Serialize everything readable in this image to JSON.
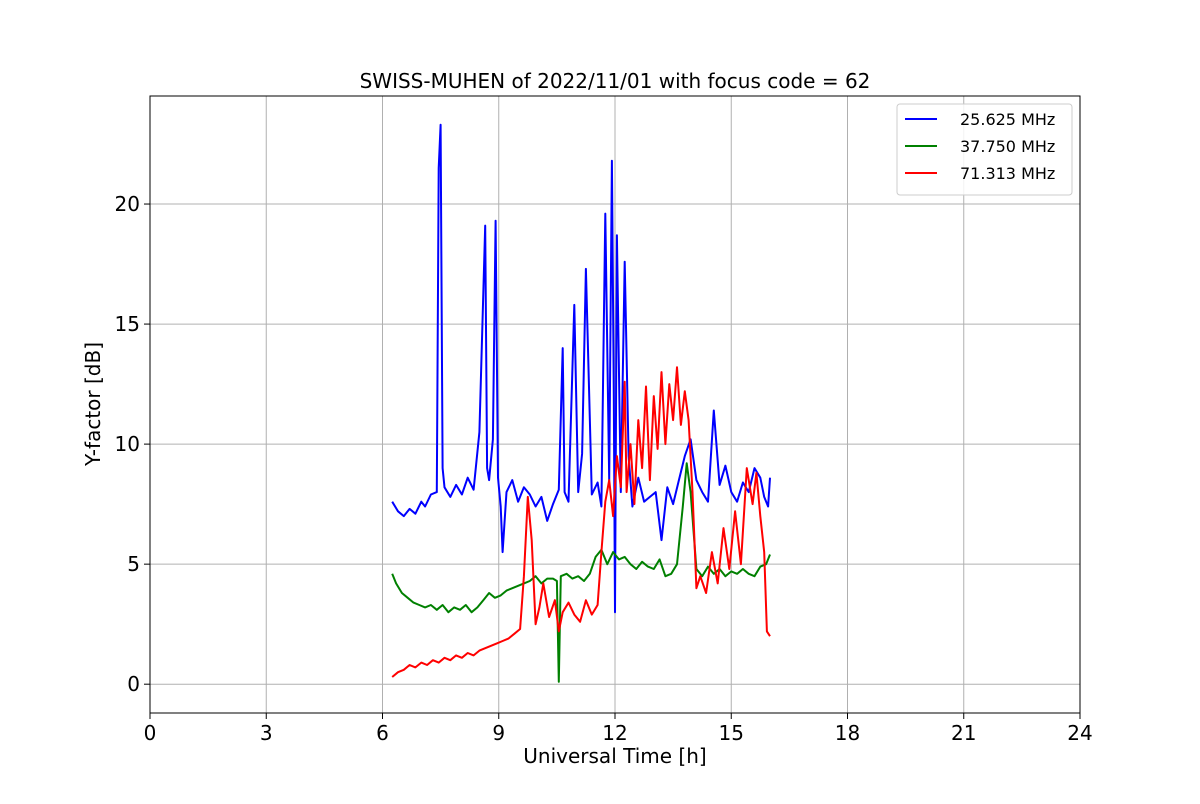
{
  "chart_data": {
    "type": "line",
    "title": "SWISS-MUHEN of 2022/11/01 with focus code = 62",
    "xlabel": "Universal Time [h]",
    "ylabel": "Y-factor [dB]",
    "xlim": [
      0,
      24
    ],
    "ylim": [
      -1.2,
      24.5
    ],
    "xticks": [
      0,
      3,
      6,
      9,
      12,
      15,
      18,
      21,
      24
    ],
    "yticks": [
      0,
      5,
      10,
      15,
      20
    ],
    "grid": true,
    "legend_position": "top-right",
    "series": [
      {
        "name": "25.625 MHz",
        "color": "#0000ff",
        "x": [
          6.25,
          6.4,
          6.55,
          6.7,
          6.85,
          7.0,
          7.1,
          7.25,
          7.4,
          7.45,
          7.5,
          7.55,
          7.6,
          7.75,
          7.9,
          8.05,
          8.2,
          8.35,
          8.5,
          8.65,
          8.7,
          8.75,
          8.85,
          8.92,
          8.98,
          9.05,
          9.1,
          9.2,
          9.35,
          9.5,
          9.65,
          9.8,
          9.95,
          10.1,
          10.25,
          10.4,
          10.55,
          10.65,
          10.7,
          10.8,
          10.95,
          11.05,
          11.15,
          11.25,
          11.4,
          11.55,
          11.65,
          11.75,
          11.85,
          11.92,
          11.97,
          12.0,
          12.05,
          12.15,
          12.25,
          12.35,
          12.45,
          12.6,
          12.75,
          12.9,
          13.05,
          13.2,
          13.35,
          13.5,
          13.65,
          13.8,
          13.95,
          14.1,
          14.25,
          14.4,
          14.55,
          14.7,
          14.85,
          15.0,
          15.15,
          15.3,
          15.45,
          15.6,
          15.75,
          15.85,
          15.95,
          16.0
        ],
        "y": [
          7.6,
          7.2,
          7.0,
          7.3,
          7.1,
          7.6,
          7.4,
          7.9,
          8.0,
          21.5,
          23.3,
          9.0,
          8.2,
          7.8,
          8.3,
          7.9,
          8.6,
          8.1,
          10.5,
          19.1,
          9.0,
          8.5,
          10.2,
          19.3,
          8.6,
          7.4,
          5.5,
          8.0,
          8.5,
          7.6,
          8.2,
          7.9,
          7.4,
          7.8,
          6.8,
          7.5,
          8.1,
          14.0,
          8.0,
          7.6,
          15.8,
          8.0,
          9.6,
          17.3,
          7.9,
          8.4,
          7.4,
          19.6,
          8.5,
          21.8,
          12.0,
          3.0,
          18.7,
          8.0,
          17.6,
          9.5,
          7.4,
          8.6,
          7.6,
          7.8,
          8.0,
          6.0,
          8.2,
          7.5,
          8.5,
          9.5,
          10.2,
          8.5,
          8.0,
          7.6,
          11.4,
          8.3,
          9.1,
          8.0,
          7.6,
          8.4,
          8.0,
          9.0,
          8.6,
          7.8,
          7.4,
          8.6
        ]
      },
      {
        "name": "37.750 MHz",
        "color": "#008000",
        "x": [
          6.25,
          6.35,
          6.5,
          6.65,
          6.8,
          6.95,
          7.1,
          7.25,
          7.4,
          7.55,
          7.7,
          7.85,
          8.0,
          8.15,
          8.3,
          8.45,
          8.6,
          8.75,
          8.9,
          9.05,
          9.2,
          9.35,
          9.5,
          9.65,
          9.8,
          9.95,
          10.1,
          10.25,
          10.4,
          10.5,
          10.55,
          10.6,
          10.75,
          10.9,
          11.05,
          11.2,
          11.35,
          11.5,
          11.65,
          11.8,
          11.95,
          12.1,
          12.25,
          12.4,
          12.55,
          12.7,
          12.85,
          13.0,
          13.15,
          13.3,
          13.45,
          13.6,
          13.75,
          13.85,
          13.95,
          14.1,
          14.25,
          14.4,
          14.55,
          14.7,
          14.85,
          15.0,
          15.15,
          15.3,
          15.45,
          15.6,
          15.75,
          15.9,
          16.0
        ],
        "y": [
          4.6,
          4.2,
          3.8,
          3.6,
          3.4,
          3.3,
          3.2,
          3.3,
          3.1,
          3.3,
          3.0,
          3.2,
          3.1,
          3.3,
          3.0,
          3.2,
          3.5,
          3.8,
          3.6,
          3.7,
          3.9,
          4.0,
          4.1,
          4.2,
          4.3,
          4.5,
          4.2,
          4.4,
          4.4,
          4.3,
          0.1,
          4.5,
          4.6,
          4.4,
          4.5,
          4.3,
          4.6,
          5.3,
          5.6,
          5.0,
          5.5,
          5.2,
          5.3,
          5.0,
          4.8,
          5.1,
          4.9,
          4.8,
          5.2,
          4.5,
          4.6,
          5.0,
          7.4,
          9.2,
          8.0,
          4.8,
          4.5,
          4.9,
          4.6,
          4.8,
          4.5,
          4.7,
          4.6,
          4.8,
          4.6,
          4.5,
          4.9,
          5.0,
          5.4
        ]
      },
      {
        "name": "71.313 MHz",
        "color": "#ff0000",
        "x": [
          6.25,
          6.4,
          6.55,
          6.7,
          6.85,
          7.0,
          7.15,
          7.3,
          7.45,
          7.6,
          7.75,
          7.9,
          8.05,
          8.2,
          8.35,
          8.5,
          8.65,
          8.8,
          8.95,
          9.1,
          9.25,
          9.4,
          9.55,
          9.65,
          9.75,
          9.85,
          9.95,
          10.05,
          10.15,
          10.3,
          10.45,
          10.55,
          10.65,
          10.8,
          10.95,
          11.1,
          11.25,
          11.4,
          11.55,
          11.65,
          11.75,
          11.85,
          11.95,
          12.05,
          12.15,
          12.25,
          12.3,
          12.4,
          12.5,
          12.6,
          12.7,
          12.8,
          12.9,
          13.0,
          13.1,
          13.2,
          13.3,
          13.4,
          13.5,
          13.6,
          13.7,
          13.8,
          13.9,
          14.0,
          14.1,
          14.2,
          14.35,
          14.5,
          14.65,
          14.8,
          14.95,
          15.1,
          15.25,
          15.4,
          15.55,
          15.65,
          15.75,
          15.85,
          15.92,
          16.0
        ],
        "y": [
          0.3,
          0.5,
          0.6,
          0.8,
          0.7,
          0.9,
          0.8,
          1.0,
          0.9,
          1.1,
          1.0,
          1.2,
          1.1,
          1.3,
          1.2,
          1.4,
          1.5,
          1.6,
          1.7,
          1.8,
          1.9,
          2.1,
          2.3,
          4.5,
          7.8,
          6.0,
          2.5,
          3.2,
          4.2,
          2.8,
          3.5,
          2.2,
          3.0,
          3.4,
          2.9,
          2.6,
          3.5,
          2.9,
          3.3,
          5.5,
          7.6,
          8.5,
          7.0,
          9.5,
          8.2,
          12.6,
          8.0,
          10.0,
          7.5,
          11.0,
          9.0,
          12.4,
          8.5,
          12.0,
          9.8,
          13.0,
          10.0,
          12.5,
          11.0,
          13.2,
          10.8,
          12.2,
          11.0,
          8.0,
          4.0,
          4.5,
          3.8,
          5.5,
          4.2,
          6.5,
          4.8,
          7.2,
          5.0,
          9.0,
          7.5,
          8.8,
          7.0,
          5.5,
          2.2,
          2.0
        ]
      }
    ],
    "legend": [
      "25.625 MHz",
      "37.750 MHz",
      "71.313 MHz"
    ]
  }
}
